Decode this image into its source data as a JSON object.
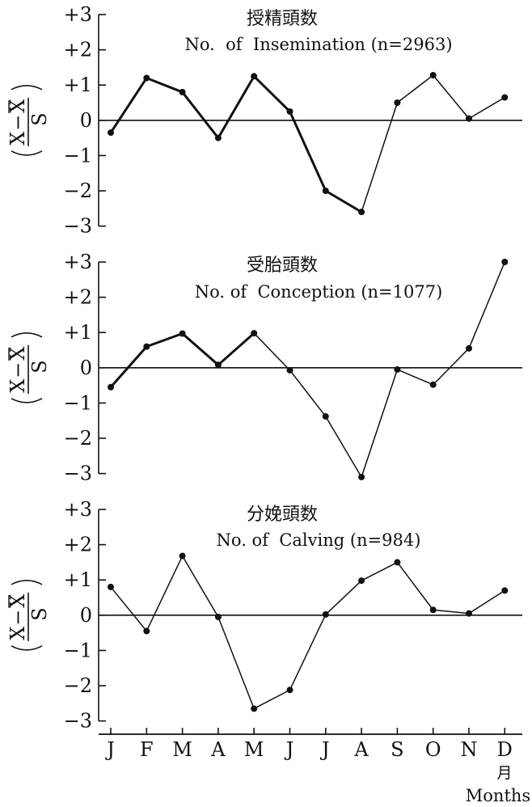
{
  "chart_data": [
    {
      "type": "line",
      "title_jp": "授精頭数",
      "title_en": "No.  of  Insemination (n=2963)",
      "ylabel": "(X−X̄ / S)",
      "ylim": [
        -3,
        3
      ],
      "yticks": [
        "+3",
        "+2",
        "+1",
        "0",
        "−1",
        "−2",
        "−3"
      ],
      "categories": [
        "J",
        "F",
        "M",
        "A",
        "M",
        "J",
        "J",
        "A",
        "S",
        "O",
        "N",
        "D"
      ],
      "values": [
        -0.35,
        1.2,
        0.8,
        -0.5,
        1.25,
        0.25,
        -2.0,
        -2.6,
        0.5,
        1.28,
        0.05,
        0.65
      ],
      "line_widths": [
        3,
        3,
        3,
        3,
        3,
        3,
        3,
        1.5,
        1.5,
        1.5,
        1.5
      ]
    },
    {
      "type": "line",
      "title_jp": "受胎頭数",
      "title_en": "No. of  Conception (n=1077)",
      "ylabel": "(X−X̄ / S)",
      "ylim": [
        -3,
        3
      ],
      "yticks": [
        "+3",
        "+2",
        "+1",
        "0",
        "−1",
        "−2",
        "−3"
      ],
      "categories": [
        "J",
        "F",
        "M",
        "A",
        "M",
        "J",
        "J",
        "A",
        "S",
        "O",
        "N",
        "D"
      ],
      "values": [
        -0.55,
        0.6,
        0.97,
        0.08,
        0.98,
        -0.07,
        -1.38,
        -3.1,
        -0.05,
        -0.48,
        0.55,
        3.0
      ],
      "line_widths": [
        3,
        3,
        3,
        3,
        1.5,
        1.5,
        1.5,
        1.5,
        1.5,
        1.5,
        1.5
      ]
    },
    {
      "type": "line",
      "title_jp": "分娩頭数",
      "title_en": "No. of  Calving (n=984)",
      "ylabel": "(X−X̄ / S)",
      "ylim": [
        -3,
        3
      ],
      "yticks": [
        "+3",
        "+2",
        "+1",
        "0",
        "−1",
        "−2",
        "−3"
      ],
      "categories": [
        "J",
        "F",
        "M",
        "A",
        "M",
        "J",
        "J",
        "A",
        "S",
        "O",
        "N",
        "D"
      ],
      "values": [
        0.8,
        -0.45,
        1.68,
        -0.05,
        -2.65,
        -2.12,
        0.02,
        0.98,
        1.5,
        0.15,
        0.05,
        0.7
      ],
      "line_widths": [
        1.5,
        1.5,
        1.5,
        1.5,
        1.5,
        1.5,
        1.5,
        1.5,
        1.5,
        1.5,
        1.5
      ]
    }
  ],
  "x_axis": {
    "labels": [
      "J",
      "F",
      "M",
      "A",
      "M",
      "J",
      "J",
      "A",
      "S",
      "O",
      "N",
      "D"
    ],
    "unit_jp": "月",
    "unit_en": "Months"
  }
}
